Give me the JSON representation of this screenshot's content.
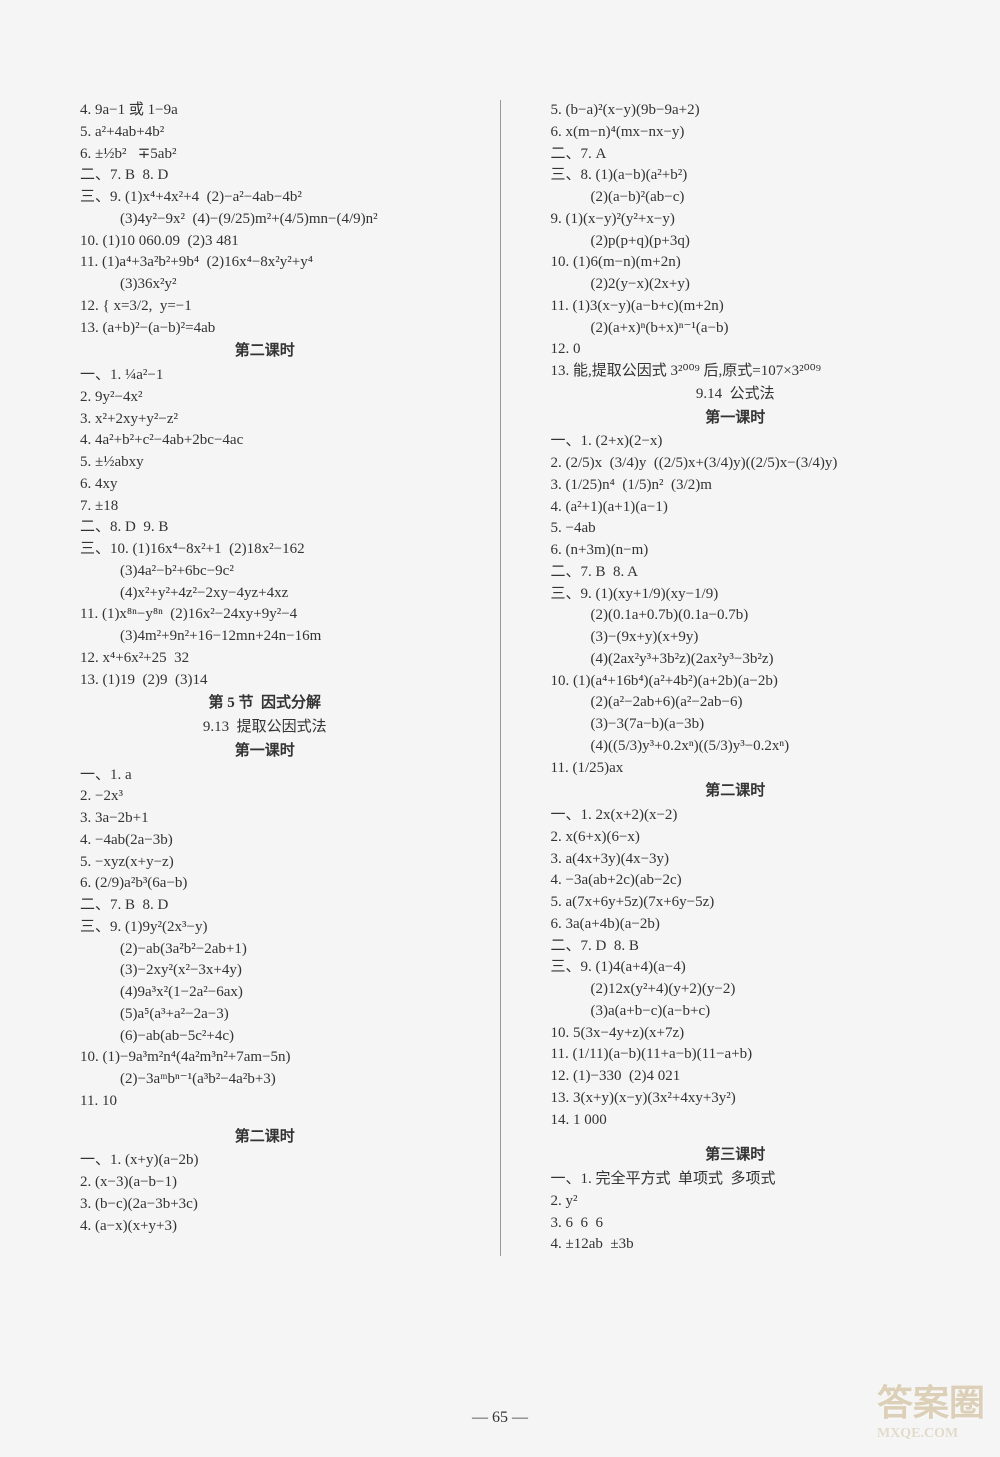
{
  "page_number": "65",
  "watermark_main": "答案圈",
  "watermark_url": "MXQE.COM",
  "left_column": [
    {
      "t": "line",
      "v": "4. 9a−1 或 1−9a"
    },
    {
      "t": "line",
      "v": "5. a²+4ab+4b²"
    },
    {
      "t": "line",
      "v": "6. ±½b²   ∓5ab²"
    },
    {
      "t": "line",
      "v": "二、7. B  8. D"
    },
    {
      "t": "line",
      "v": "三、9. (1)x⁴+4x²+4  (2)−a²−4ab−4b²"
    },
    {
      "t": "indent",
      "v": "(3)4y²−9x²  (4)−(9/25)m²+(4/5)mn−(4/9)n²"
    },
    {
      "t": "line",
      "v": "10. (1)10 060.09  (2)3 481"
    },
    {
      "t": "line",
      "v": "11. (1)a⁴+3a²b²+9b⁴  (2)16x⁴−8x²y²+y⁴"
    },
    {
      "t": "indent",
      "v": "(3)36x²y²"
    },
    {
      "t": "line",
      "v": "12. { x=3/2,  y=−1"
    },
    {
      "t": "line",
      "v": "13. (a+b)²−(a−b)²=4ab"
    },
    {
      "t": "heading",
      "v": "第二课时"
    },
    {
      "t": "line",
      "v": "一、1. ¼a²−1"
    },
    {
      "t": "line",
      "v": "2. 9y²−4x²"
    },
    {
      "t": "line",
      "v": "3. x²+2xy+y²−z²"
    },
    {
      "t": "line",
      "v": "4. 4a²+b²+c²−4ab+2bc−4ac"
    },
    {
      "t": "line",
      "v": "5. ±½abxy"
    },
    {
      "t": "line",
      "v": "6. 4xy"
    },
    {
      "t": "line",
      "v": "7. ±18"
    },
    {
      "t": "line",
      "v": "二、8. D  9. B"
    },
    {
      "t": "line",
      "v": "三、10. (1)16x⁴−8x²+1  (2)18x²−162"
    },
    {
      "t": "indent",
      "v": "(3)4a²−b²+6bc−9c²"
    },
    {
      "t": "indent",
      "v": "(4)x²+y²+4z²−2xy−4yz+4xz"
    },
    {
      "t": "line",
      "v": "11. (1)x⁸ⁿ−y⁸ⁿ  (2)16x²−24xy+9y²−4"
    },
    {
      "t": "indent",
      "v": "(3)4m²+9n²+16−12mn+24n−16m"
    },
    {
      "t": "line",
      "v": "12. x⁴+6x²+25  32"
    },
    {
      "t": "line",
      "v": "13. (1)19  (2)9  (3)14"
    },
    {
      "t": "heading",
      "v": "第 5 节  因式分解"
    },
    {
      "t": "subheading",
      "v": "9.13  提取公因式法"
    },
    {
      "t": "heading",
      "v": "第一课时"
    },
    {
      "t": "line",
      "v": "一、1. a"
    },
    {
      "t": "line",
      "v": "2. −2x³"
    },
    {
      "t": "line",
      "v": "3. 3a−2b+1"
    },
    {
      "t": "line",
      "v": "4. −4ab(2a−3b)"
    },
    {
      "t": "line",
      "v": "5. −xyz(x+y−z)"
    },
    {
      "t": "line",
      "v": "6. (2/9)a²b³(6a−b)"
    },
    {
      "t": "line",
      "v": "二、7. B  8. D"
    },
    {
      "t": "line",
      "v": "三、9. (1)9y²(2x³−y)"
    },
    {
      "t": "indent",
      "v": "(2)−ab(3a²b²−2ab+1)"
    },
    {
      "t": "indent",
      "v": "(3)−2xy²(x²−3x+4y)"
    },
    {
      "t": "indent",
      "v": "(4)9a³x²(1−2a²−6ax)"
    },
    {
      "t": "indent",
      "v": "(5)a⁵(a³+a²−2a−3)"
    },
    {
      "t": "indent",
      "v": "(6)−ab(ab−5c²+4c)"
    },
    {
      "t": "line",
      "v": "10. (1)−9a³m²n⁴(4a²m³n²+7am−5n)"
    },
    {
      "t": "indent",
      "v": "(2)−3aᵐbⁿ⁻¹(a³b²−4a²b+3)"
    },
    {
      "t": "line",
      "v": "11. 10"
    },
    {
      "t": "spacer",
      "v": ""
    },
    {
      "t": "heading",
      "v": "第二课时"
    },
    {
      "t": "line",
      "v": "一、1. (x+y)(a−2b)"
    },
    {
      "t": "line",
      "v": "2. (x−3)(a−b−1)"
    },
    {
      "t": "line",
      "v": "3. (b−c)(2a−3b+3c)"
    },
    {
      "t": "line",
      "v": "4. (a−x)(x+y+3)"
    }
  ],
  "right_column": [
    {
      "t": "line",
      "v": "5. (b−a)²(x−y)(9b−9a+2)"
    },
    {
      "t": "line",
      "v": "6. x(m−n)⁴(mx−nx−y)"
    },
    {
      "t": "line",
      "v": "二、7. A"
    },
    {
      "t": "line",
      "v": "三、8. (1)(a−b)(a²+b²)"
    },
    {
      "t": "indent",
      "v": "(2)(a−b)²(ab−c)"
    },
    {
      "t": "line",
      "v": "9. (1)(x−y)²(y²+x−y)"
    },
    {
      "t": "indent",
      "v": "(2)p(p+q)(p+3q)"
    },
    {
      "t": "line",
      "v": "10. (1)6(m−n)(m+2n)"
    },
    {
      "t": "indent",
      "v": "(2)2(y−x)(2x+y)"
    },
    {
      "t": "line",
      "v": "11. (1)3(x−y)(a−b+c)(m+2n)"
    },
    {
      "t": "indent",
      "v": "(2)(a+x)ⁿ(b+x)ⁿ⁻¹(a−b)"
    },
    {
      "t": "line",
      "v": "12. 0"
    },
    {
      "t": "line",
      "v": "13. 能,提取公因式 3²⁰⁰⁹ 后,原式=107×3²⁰⁰⁹"
    },
    {
      "t": "subheading",
      "v": "9.14  公式法"
    },
    {
      "t": "heading",
      "v": "第一课时"
    },
    {
      "t": "line",
      "v": "一、1. (2+x)(2−x)"
    },
    {
      "t": "line",
      "v": "2. (2/5)x  (3/4)y  ((2/5)x+(3/4)y)((2/5)x−(3/4)y)"
    },
    {
      "t": "line",
      "v": "3. (1/25)n⁴  (1/5)n²  (3/2)m"
    },
    {
      "t": "line",
      "v": "4. (a²+1)(a+1)(a−1)"
    },
    {
      "t": "line",
      "v": "5. −4ab"
    },
    {
      "t": "line",
      "v": "6. (n+3m)(n−m)"
    },
    {
      "t": "line",
      "v": "二、7. B  8. A"
    },
    {
      "t": "line",
      "v": "三、9. (1)(xy+1/9)(xy−1/9)"
    },
    {
      "t": "indent",
      "v": "(2)(0.1a+0.7b)(0.1a−0.7b)"
    },
    {
      "t": "indent",
      "v": "(3)−(9x+y)(x+9y)"
    },
    {
      "t": "indent",
      "v": "(4)(2ax²y³+3b²z)(2ax²y³−3b²z)"
    },
    {
      "t": "line",
      "v": "10. (1)(a⁴+16b⁴)(a²+4b²)(a+2b)(a−2b)"
    },
    {
      "t": "indent",
      "v": "(2)(a²−2ab+6)(a²−2ab−6)"
    },
    {
      "t": "indent",
      "v": "(3)−3(7a−b)(a−3b)"
    },
    {
      "t": "indent",
      "v": "(4)((5/3)y³+0.2xⁿ)((5/3)y³−0.2xⁿ)"
    },
    {
      "t": "line",
      "v": "11. (1/25)ax"
    },
    {
      "t": "heading",
      "v": "第二课时"
    },
    {
      "t": "line",
      "v": "一、1. 2x(x+2)(x−2)"
    },
    {
      "t": "line",
      "v": "2. x(6+x)(6−x)"
    },
    {
      "t": "line",
      "v": "3. a(4x+3y)(4x−3y)"
    },
    {
      "t": "line",
      "v": "4. −3a(ab+2c)(ab−2c)"
    },
    {
      "t": "line",
      "v": "5. a(7x+6y+5z)(7x+6y−5z)"
    },
    {
      "t": "line",
      "v": "6. 3a(a+4b)(a−2b)"
    },
    {
      "t": "line",
      "v": "二、7. D  8. B"
    },
    {
      "t": "line",
      "v": "三、9. (1)4(a+4)(a−4)"
    },
    {
      "t": "indent",
      "v": "(2)12x(y²+4)(y+2)(y−2)"
    },
    {
      "t": "indent",
      "v": "(3)a(a+b−c)(a−b+c)"
    },
    {
      "t": "line",
      "v": "10. 5(3x−4y+z)(x+7z)"
    },
    {
      "t": "line",
      "v": "11. (1/11)(a−b)(11+a−b)(11−a+b)"
    },
    {
      "t": "line",
      "v": "12. (1)−330  (2)4 021"
    },
    {
      "t": "line",
      "v": "13. 3(x+y)(x−y)(3x²+4xy+3y²)"
    },
    {
      "t": "line",
      "v": "14. 1 000"
    },
    {
      "t": "spacer",
      "v": ""
    },
    {
      "t": "heading",
      "v": "第三课时"
    },
    {
      "t": "line",
      "v": "一、1. 完全平方式  单项式  多项式"
    },
    {
      "t": "line",
      "v": "2. y²"
    },
    {
      "t": "line",
      "v": "3. 6  6  6"
    },
    {
      "t": "line",
      "v": "4. ±12ab  ±3b"
    }
  ]
}
